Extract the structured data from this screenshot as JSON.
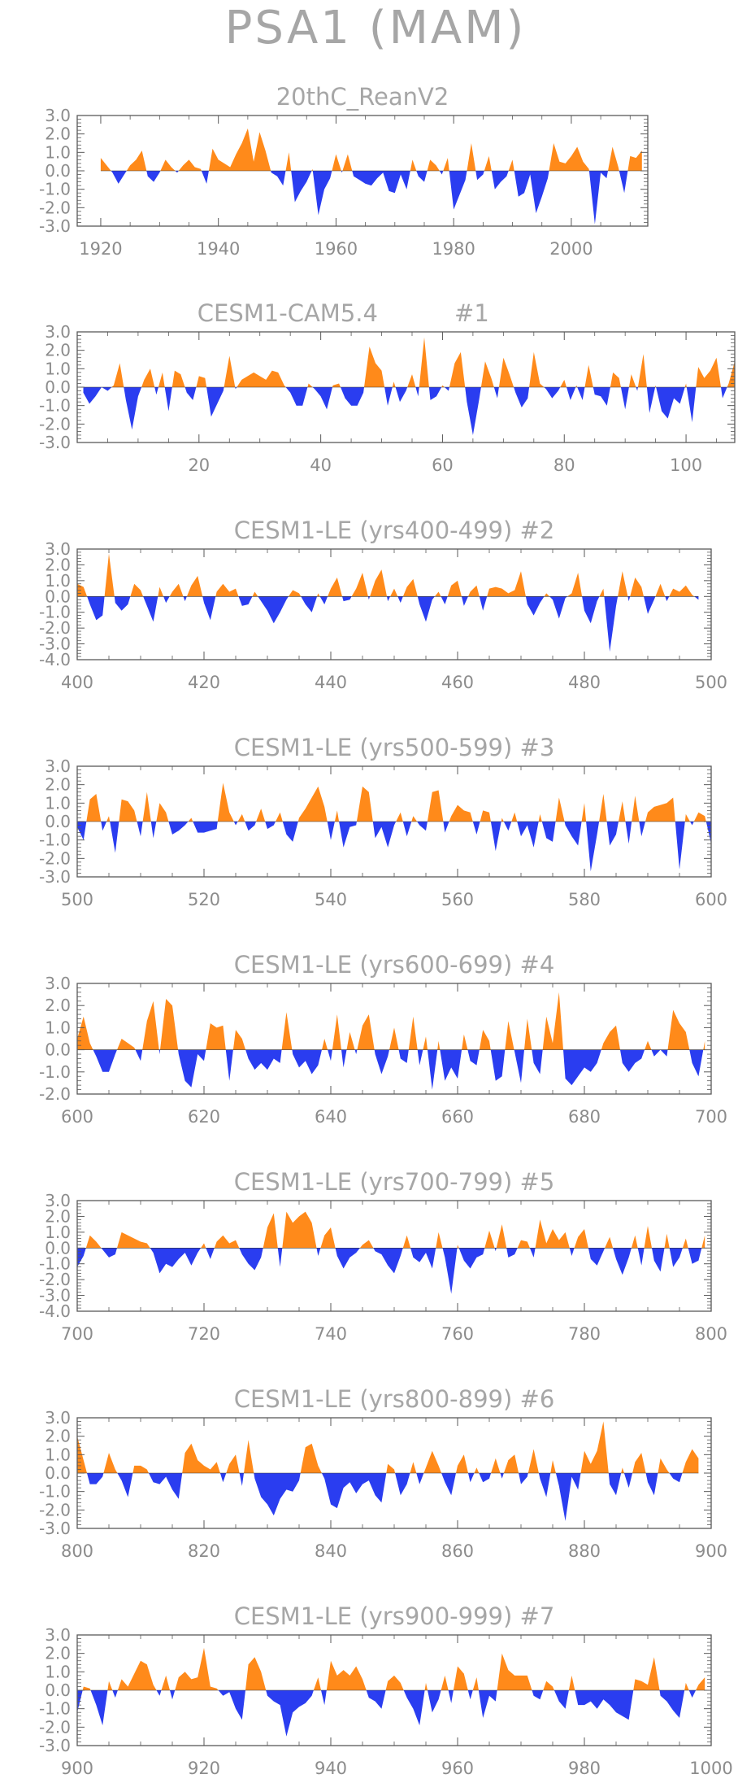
{
  "title": "PSA1 (MAM)",
  "colors": {
    "positive": "#ff8a1a",
    "negative": "#2a3df0",
    "text": "#a6a6a6",
    "frame": "#595959"
  },
  "y_tick_labels_a": [
    "3.0",
    "2.0",
    "1.0",
    "0.0",
    "-1.0",
    "-2.0",
    "-3.0"
  ],
  "y_tick_labels_b": [
    "3.0",
    "2.0",
    "1.0",
    "0.0",
    "-1.0",
    "-2.0",
    "-3.0",
    "-4.0"
  ],
  "y_tick_labels_c": [
    "3.0",
    "2.0",
    "1.0",
    "0.0",
    "-1.0",
    "-2.0"
  ],
  "chart_data": [
    {
      "type": "area",
      "title": "20thC_ReanV2",
      "x_start": 1920,
      "x_end": 2012,
      "xlim": [
        1916,
        2013
      ],
      "ylim": [
        -3,
        3
      ],
      "xticks": [
        1920,
        1940,
        1960,
        1980,
        2000
      ],
      "values": [
        0.7,
        0.3,
        -0.1,
        -0.7,
        -0.2,
        0.3,
        0.6,
        1.1,
        -0.3,
        -0.6,
        -0.1,
        0.6,
        0.2,
        -0.1,
        0.3,
        0.6,
        0.2,
        0.1,
        -0.7,
        1.2,
        0.6,
        0.4,
        0.2,
        0.9,
        1.5,
        2.3,
        0.5,
        2.1,
        1.1,
        -0.1,
        -0.3,
        -0.8,
        1.0,
        -1.7,
        -1.1,
        -0.6,
        0.1,
        -2.4,
        -1.0,
        -0.4,
        0.9,
        -0.1,
        0.9,
        -0.3,
        -0.5,
        -0.7,
        -0.8,
        -0.4,
        -0.1,
        -1.1,
        -1.2,
        -0.2,
        -1.0,
        0.6,
        -0.3,
        -0.6,
        0.6,
        0.3,
        -0.2,
        0.7,
        -2.1,
        -1.3,
        -0.5,
        1.5,
        -0.5,
        -0.2,
        0.8,
        -1.0,
        -0.6,
        -0.3,
        0.6,
        -1.4,
        -1.2,
        -0.2,
        -2.3,
        -1.4,
        -0.4,
        1.5,
        0.5,
        0.4,
        0.8,
        1.3,
        0.5,
        0.1,
        -2.9,
        -0.1,
        -0.4,
        1.3,
        0.2,
        -1.2,
        0.8,
        0.7,
        1.1
      ]
    },
    {
      "type": "area",
      "title": "CESM1-CAM5.4",
      "run_label": "#1",
      "x_start": 1,
      "x_end": 107,
      "xlim": [
        0,
        108
      ],
      "ylim": [
        -3,
        3
      ],
      "xticks": [
        20,
        40,
        60,
        80,
        100
      ],
      "values": [
        -0.3,
        -0.9,
        -0.5,
        0.0,
        -0.2,
        0.1,
        1.3,
        -0.7,
        -2.3,
        -0.5,
        0.4,
        1.0,
        -0.4,
        0.8,
        -1.3,
        0.9,
        0.7,
        -0.3,
        -0.7,
        0.6,
        0.5,
        -1.6,
        -0.9,
        -0.2,
        1.7,
        -0.1,
        0.4,
        0.6,
        0.8,
        0.6,
        0.4,
        0.9,
        0.8,
        0.1,
        -0.3,
        -1.0,
        -1.0,
        0.2,
        -0.1,
        -0.5,
        -1.2,
        0.1,
        0.2,
        -0.6,
        -1.0,
        -1.0,
        -0.3,
        2.2,
        1.3,
        0.9,
        -1.0,
        0.3,
        -0.8,
        -0.2,
        0.7,
        -0.5,
        2.7,
        -0.7,
        -0.5,
        0.1,
        -0.2,
        1.3,
        1.9,
        -0.8,
        -2.6,
        -0.7,
        1.4,
        0.5,
        -0.6,
        1.6,
        0.7,
        -0.3,
        -1.1,
        -0.6,
        1.9,
        0.2,
        -0.1,
        -0.6,
        -0.2,
        0.4,
        -0.7,
        0.1,
        -0.7,
        1.2,
        -0.4,
        -0.5,
        -1.0,
        0.8,
        0.5,
        -1.2,
        0.7,
        -0.2,
        1.8,
        -1.4,
        0.1,
        -1.3,
        -1.7,
        -0.6,
        -0.9,
        0.2,
        -1.9,
        1.1,
        0.5,
        0.9,
        1.6,
        -0.6,
        0.2,
        1.4
      ]
    },
    {
      "type": "area",
      "title": "CESM1-LE (yrs400-499) #2",
      "x_start": 400,
      "x_end": 498,
      "xlim": [
        400,
        500
      ],
      "ylim": [
        -4,
        3
      ],
      "xticks": [
        400,
        420,
        440,
        460,
        480,
        500
      ],
      "values": [
        0.8,
        0.6,
        -0.5,
        -1.5,
        -1.2,
        2.7,
        -0.4,
        -0.9,
        -0.5,
        0.8,
        0.4,
        -0.6,
        -1.6,
        0.6,
        -0.4,
        0.3,
        0.8,
        -0.3,
        0.7,
        1.3,
        -0.4,
        -1.5,
        0.3,
        0.8,
        0.3,
        0.5,
        -0.6,
        -0.5,
        0.3,
        -0.3,
        -0.9,
        -1.7,
        -1.0,
        -0.2,
        0.4,
        0.2,
        -0.5,
        -1.0,
        0.2,
        -0.5,
        0.5,
        1.2,
        -0.3,
        -0.2,
        0.5,
        1.5,
        -0.2,
        1.0,
        1.7,
        -0.3,
        0.5,
        -0.4,
        0.6,
        1.1,
        -0.5,
        -1.6,
        -0.2,
        0.3,
        -0.5,
        0.7,
        1.0,
        -0.6,
        0.3,
        0.7,
        -0.9,
        0.5,
        0.6,
        0.5,
        0.2,
        0.4,
        1.6,
        -0.5,
        -1.2,
        -0.4,
        0.2,
        -0.2,
        -1.4,
        -0.1,
        0.2,
        1.5,
        -0.9,
        -1.7,
        -0.3,
        0.5,
        -3.5,
        -0.6,
        1.6,
        -0.3,
        1.2,
        0.6,
        -1.1,
        -0.2,
        0.8,
        -0.3,
        0.5,
        0.3,
        0.7,
        0.1,
        -0.2
      ]
    },
    {
      "type": "area",
      "title": "CESM1-LE (yrs500-599) #3",
      "x_start": 500,
      "x_end": 599,
      "xlim": [
        500,
        600
      ],
      "ylim": [
        -3,
        3
      ],
      "xticks": [
        500,
        520,
        540,
        560,
        580,
        600
      ],
      "values": [
        -0.3,
        -1.0,
        1.2,
        1.5,
        -0.5,
        0.3,
        -1.7,
        1.2,
        1.1,
        0.6,
        -0.8,
        1.6,
        -0.9,
        1.0,
        0.5,
        -0.7,
        -0.5,
        -0.2,
        0.2,
        -0.6,
        -0.6,
        -0.5,
        -0.4,
        2.1,
        0.5,
        -0.2,
        0.4,
        -0.5,
        -0.2,
        0.7,
        -0.4,
        -0.2,
        0.5,
        -0.7,
        -1.1,
        0.2,
        0.7,
        1.3,
        1.9,
        0.8,
        -1.0,
        0.6,
        -1.4,
        -0.3,
        -0.2,
        1.9,
        1.6,
        -0.9,
        -0.3,
        -1.4,
        -0.2,
        0.5,
        -0.8,
        0.3,
        -0.2,
        -0.5,
        1.6,
        1.7,
        -0.6,
        0.3,
        0.9,
        0.6,
        0.5,
        -0.7,
        0.6,
        0.5,
        -1.6,
        0.2,
        -0.5,
        0.5,
        -0.8,
        -0.2,
        -1.4,
        0.4,
        -0.9,
        -1.1,
        1.3,
        -0.2,
        -0.8,
        -1.3,
        1.0,
        -2.7,
        -0.7,
        1.5,
        -1.3,
        -0.7,
        1.1,
        -1.2,
        1.4,
        -0.8,
        0.5,
        0.8,
        0.9,
        1.0,
        1.3,
        -2.6,
        0.4,
        -0.2,
        0.5,
        0.3,
        -1.2
      ]
    },
    {
      "type": "area",
      "title": "CESM1-LE (yrs600-699) #4",
      "x_start": 600,
      "x_end": 699,
      "xlim": [
        600,
        700
      ],
      "ylim": [
        -2,
        3
      ],
      "xticks": [
        600,
        620,
        640,
        660,
        680,
        700
      ],
      "values": [
        0.5,
        1.5,
        0.3,
        -0.3,
        -1.0,
        -1.0,
        -0.2,
        0.5,
        0.3,
        0.1,
        -0.5,
        1.3,
        2.2,
        -0.2,
        2.3,
        2.0,
        -0.2,
        -1.4,
        -1.7,
        -0.2,
        -0.5,
        1.2,
        1.0,
        1.1,
        -1.4,
        0.9,
        0.5,
        -0.4,
        -0.9,
        -0.6,
        -0.9,
        -0.4,
        -0.6,
        1.7,
        -0.2,
        -0.8,
        -0.5,
        -1.1,
        -0.7,
        0.5,
        -0.5,
        1.6,
        -0.8,
        0.8,
        -0.2,
        1.1,
        1.6,
        -0.2,
        -1.1,
        -0.3,
        1.0,
        -0.4,
        -0.6,
        1.5,
        -0.7,
        0.6,
        -1.8,
        0.4,
        -1.4,
        -0.8,
        -1.3,
        0.7,
        -0.5,
        -0.7,
        0.9,
        0.4,
        -1.4,
        -1.2,
        1.3,
        -0.1,
        -1.5,
        1.4,
        -0.6,
        -1.1,
        1.5,
        0.3,
        2.6,
        -1.3,
        -1.6,
        -1.2,
        -0.8,
        -1.0,
        -0.6,
        0.3,
        0.8,
        1.1,
        -0.6,
        -1.0,
        -0.6,
        -0.4,
        0.4,
        -0.3,
        0.0,
        -0.3,
        1.8,
        1.2,
        0.8,
        -0.6,
        -1.2,
        0.4
      ]
    },
    {
      "type": "area",
      "title": "CESM1-LE (yrs700-799) #5",
      "x_start": 700,
      "x_end": 799,
      "xlim": [
        700,
        800
      ],
      "ylim": [
        -4,
        3
      ],
      "xticks": [
        700,
        720,
        740,
        760,
        780,
        800
      ],
      "values": [
        -1.2,
        -0.5,
        0.8,
        0.4,
        -0.1,
        -0.6,
        -0.4,
        1.0,
        0.8,
        0.6,
        0.4,
        0.3,
        -0.3,
        -1.6,
        -1.0,
        -1.2,
        -0.7,
        -0.3,
        -1.1,
        -0.3,
        0.3,
        -0.7,
        0.4,
        0.8,
        0.3,
        0.5,
        -0.4,
        -1.0,
        -1.4,
        -0.6,
        1.3,
        2.2,
        -1.2,
        2.3,
        1.6,
        2.0,
        2.3,
        1.6,
        -0.5,
        0.8,
        1.3,
        -0.5,
        -1.3,
        -0.6,
        -0.3,
        0.2,
        0.5,
        -0.2,
        -0.4,
        -1.1,
        -1.6,
        -0.5,
        0.8,
        -0.6,
        -0.9,
        -0.3,
        -1.3,
        1.0,
        -0.6,
        -2.9,
        0.2,
        -0.8,
        -1.3,
        -0.6,
        -0.4,
        1.1,
        -0.2,
        1.5,
        -0.6,
        -0.4,
        0.5,
        0.4,
        -0.6,
        1.8,
        0.3,
        1.2,
        0.5,
        1.0,
        -0.5,
        0.7,
        1.2,
        -0.7,
        -1.1,
        -0.2,
        0.7,
        -0.7,
        -1.7,
        -0.6,
        0.8,
        -1.1,
        1.4,
        -0.8,
        -1.5,
        0.9,
        -1.2,
        -0.6,
        0.6,
        -1.0,
        -0.8,
        0.8
      ]
    },
    {
      "type": "area",
      "title": "CESM1-LE (yrs800-899) #6",
      "x_start": 800,
      "x_end": 899,
      "xlim": [
        800,
        900
      ],
      "ylim": [
        -3,
        3
      ],
      "xticks": [
        800,
        820,
        840,
        860,
        880,
        900
      ],
      "values": [
        2.0,
        0.7,
        -0.6,
        -0.6,
        -0.2,
        1.1,
        0.2,
        -0.4,
        -1.3,
        0.4,
        0.4,
        0.2,
        -0.5,
        -0.6,
        -0.2,
        -0.9,
        -1.4,
        1.1,
        1.6,
        0.7,
        0.4,
        0.2,
        0.6,
        -0.5,
        0.5,
        1.0,
        -0.7,
        1.8,
        -0.3,
        -1.3,
        -1.7,
        -2.3,
        -1.4,
        -0.9,
        -1.0,
        -0.4,
        1.4,
        1.6,
        0.4,
        -0.3,
        -1.7,
        -1.9,
        -0.8,
        -0.5,
        -1.1,
        -0.6,
        -0.4,
        -1.2,
        -1.6,
        0.5,
        0.2,
        -1.2,
        -0.6,
        0.6,
        -0.6,
        0.3,
        1.2,
        0.4,
        -0.5,
        -1.2,
        0.4,
        1.0,
        -0.5,
        0.3,
        -0.5,
        -0.3,
        0.8,
        -0.3,
        0.7,
        1.0,
        -0.6,
        -0.2,
        1.3,
        -0.3,
        -1.3,
        0.7,
        -0.7,
        -2.6,
        -0.2,
        -0.9,
        1.2,
        0.5,
        1.2,
        2.8,
        -0.6,
        -1.2,
        0.3,
        -0.8,
        0.6,
        1.1,
        -0.5,
        -1.2,
        0.8,
        0.2,
        -0.3,
        -0.5,
        0.6,
        1.3,
        0.8
      ]
    },
    {
      "type": "area",
      "title": "CESM1-LE (yrs900-999) #7",
      "x_start": 900,
      "x_end": 999,
      "xlim": [
        900,
        1000
      ],
      "ylim": [
        -3,
        3
      ],
      "xticks": [
        900,
        920,
        940,
        960,
        980,
        1000
      ],
      "values": [
        -1.2,
        0.2,
        0.1,
        -0.8,
        -1.9,
        0.5,
        -0.4,
        0.6,
        0.2,
        0.9,
        1.6,
        1.4,
        0.3,
        -0.3,
        0.8,
        -0.5,
        0.7,
        1.0,
        0.6,
        0.7,
        2.3,
        0.2,
        0.1,
        -0.3,
        -0.1,
        -1.0,
        -1.6,
        1.4,
        1.8,
        1.0,
        -0.3,
        -0.6,
        -0.8,
        -2.5,
        -1.2,
        -0.9,
        -0.7,
        -0.3,
        0.7,
        -0.8,
        1.6,
        0.8,
        1.1,
        0.8,
        1.3,
        0.6,
        -0.4,
        -0.6,
        -1.0,
        0.5,
        0.8,
        0.4,
        -0.4,
        -1.0,
        -1.9,
        0.4,
        -1.2,
        -0.5,
        0.8,
        -0.7,
        1.3,
        0.9,
        -0.5,
        0.7,
        -1.5,
        -0.3,
        -0.6,
        2.0,
        1.1,
        0.8,
        0.8,
        0.8,
        -0.3,
        -0.5,
        0.5,
        0.2,
        -0.6,
        -1.0,
        0.8,
        -0.8,
        -0.8,
        -0.6,
        -1.0,
        -0.5,
        -0.8,
        -1.2,
        -1.4,
        -1.6,
        0.6,
        0.5,
        0.3,
        1.8,
        -0.3,
        -0.6,
        -1.1,
        -1.5,
        0.4,
        -0.4,
        0.3,
        0.7
      ]
    }
  ]
}
